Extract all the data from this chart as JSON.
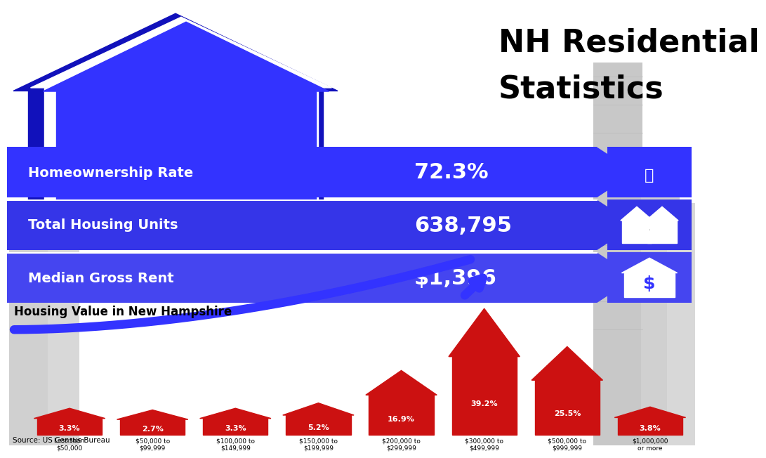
{
  "title_line1": "NH Residential",
  "title_line2": "Statistics",
  "bg_color": "#ffffff",
  "stats": [
    {
      "label": "Homeownership Rate",
      "value": "72.3%"
    },
    {
      "label": "Total Housing Units",
      "value": "638,795"
    },
    {
      "label": "Median Gross Rent",
      "value": "$1,396"
    }
  ],
  "housing_title": "Housing Value in New Hampshire",
  "housing_data": [
    {
      "pct": "3.3%",
      "label": "Less than\n$50,000",
      "value": 3.3
    },
    {
      "pct": "2.7%",
      "label": "$50,000 to\n$99,999",
      "value": 2.7
    },
    {
      "pct": "3.3%",
      "label": "$100,000 to\n$149,999",
      "value": 3.3
    },
    {
      "pct": "5.2%",
      "label": "$150,000 to\n$199,999",
      "value": 5.2
    },
    {
      "pct": "16.9%",
      "label": "$200,000 to\n$299,999",
      "value": 16.9
    },
    {
      "pct": "39.2%",
      "label": "$300,000 to\n$499,999",
      "value": 39.2
    },
    {
      "pct": "25.5%",
      "label": "$500,000 to\n$999,999",
      "value": 25.5
    },
    {
      "pct": "3.8%",
      "label": "$1,000,000\nor more",
      "value": 3.8
    }
  ],
  "source": "Source: US Census Bureau",
  "blue_dark": "#1111bb",
  "blue_mid": "#2222cc",
  "blue_bright": "#3333ff",
  "band_colors": [
    "#2222dd",
    "#3030dd",
    "#4040ee"
  ],
  "red_color": "#cc1111",
  "gray_dark": "#888888",
  "gray_light": "#cccccc"
}
